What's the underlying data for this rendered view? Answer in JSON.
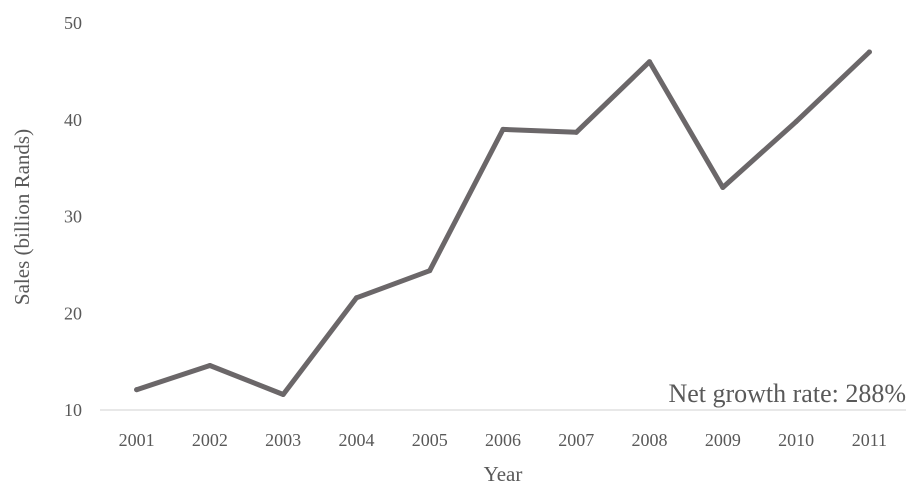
{
  "chart_data": {
    "type": "line",
    "x": [
      "2001",
      "2002",
      "2003",
      "2004",
      "2005",
      "2006",
      "2007",
      "2008",
      "2009",
      "2010",
      "2011"
    ],
    "series": [
      {
        "values": [
          12.1,
          14.6,
          11.6,
          21.6,
          24.4,
          39.0,
          38.7,
          46.0,
          33.0,
          39.8,
          47.0
        ]
      }
    ],
    "xlabel": "Year",
    "ylabel": "Sales (billion Rands)",
    "ylim": [
      10,
      50
    ],
    "yticks": [
      10,
      20,
      30,
      40,
      50
    ],
    "grid": false,
    "annotation": "Net growth rate: 288%",
    "line_color": "#6b6769",
    "axis_color": "#d9d9d9",
    "text_color": "#595959"
  }
}
